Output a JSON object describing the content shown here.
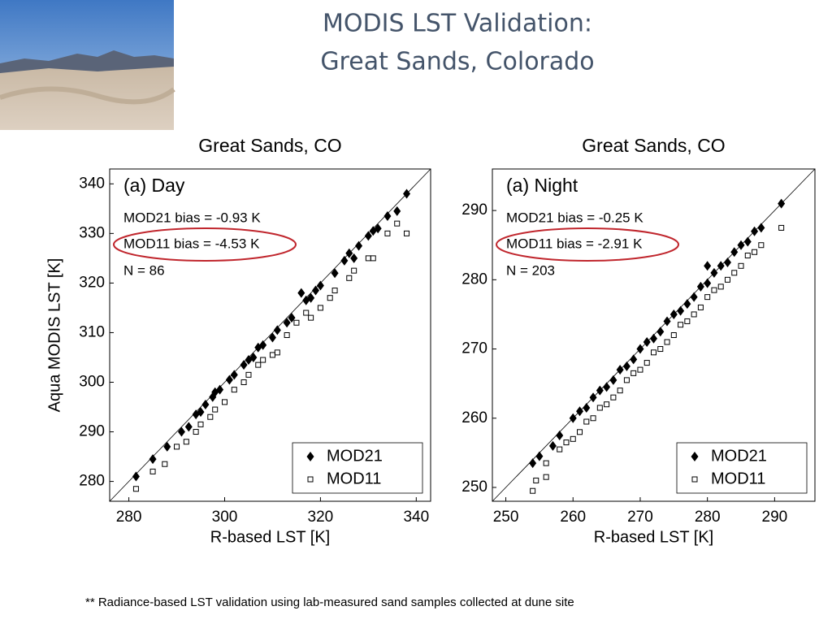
{
  "slide": {
    "title": [
      "MODIS LST Validation:",
      "Great Sands, Colorado"
    ],
    "footnote": "** Radiance-based LST validation using lab-measured sand samples collected at dune site"
  },
  "chart_data": [
    {
      "type": "scatter",
      "title": "Great Sands, CO",
      "panel_label": "(a) Day",
      "annotations": [
        "MOD21 bias = -0.93 K",
        "MOD11 bias = -4.53 K",
        "N = 86"
      ],
      "xlabel": "R-based LST [K]",
      "ylabel": "Aqua MODIS LST [K]",
      "xlim": [
        276,
        343
      ],
      "ylim": [
        276,
        343
      ],
      "xticks": [
        280,
        300,
        320,
        340
      ],
      "yticks": [
        280,
        290,
        300,
        310,
        320,
        330,
        340
      ],
      "legend": "lower right",
      "series": [
        {
          "name": "MOD21",
          "color": "#000000",
          "marker": "diamond",
          "x": [
            281.5,
            285,
            288,
            291,
            292.5,
            294,
            295,
            296,
            297.5,
            298,
            299,
            301,
            302,
            304,
            305,
            306,
            307,
            308,
            310,
            311,
            313,
            314,
            316,
            317,
            318,
            319,
            320,
            323,
            325,
            326,
            327,
            328,
            330,
            331,
            332,
            334,
            336,
            338
          ],
          "values": [
            281,
            284.5,
            287,
            290,
            291,
            293.5,
            294,
            295.5,
            297,
            298,
            298.5,
            300.5,
            301.5,
            303.5,
            304.5,
            305,
            307,
            307.5,
            309,
            310.5,
            312,
            313,
            318,
            316.5,
            317,
            318.5,
            319.5,
            322,
            324.5,
            326,
            325,
            327.5,
            329.5,
            330.5,
            331,
            333.5,
            334.5,
            338
          ]
        },
        {
          "name": "MOD11",
          "color": "#000000",
          "marker": "square-open",
          "x": [
            281.5,
            285,
            287.5,
            290,
            292,
            294,
            295,
            297,
            298,
            300,
            302,
            304,
            305,
            307,
            308,
            310,
            311,
            313,
            315,
            317,
            318,
            320,
            322,
            323,
            326,
            327,
            330,
            331,
            334,
            336,
            338
          ],
          "values": [
            278.5,
            282,
            283.5,
            287,
            288,
            290,
            291.5,
            293,
            294.5,
            296,
            298.5,
            300,
            301.5,
            303.5,
            304.5,
            305.5,
            306,
            309.5,
            312,
            314,
            313,
            315,
            317,
            318.5,
            321,
            322.5,
            325,
            325,
            330,
            332,
            330
          ]
        }
      ]
    },
    {
      "type": "scatter",
      "title": "Great Sands, CO",
      "panel_label": "(a) Night",
      "annotations": [
        "MOD21 bias = -0.25 K",
        "MOD11 bias = -2.91 K",
        "N = 203"
      ],
      "xlabel": "R-based LST [K]",
      "xlim": [
        248,
        296
      ],
      "ylim": [
        248,
        296
      ],
      "xticks": [
        250,
        260,
        270,
        280,
        290
      ],
      "yticks": [
        250,
        260,
        270,
        280,
        290
      ],
      "legend": "lower right",
      "series": [
        {
          "name": "MOD21",
          "color": "#000000",
          "marker": "diamond",
          "x": [
            254,
            255,
            257,
            258,
            260,
            261,
            262,
            263,
            264,
            265,
            266,
            267,
            268,
            269,
            270,
            271,
            272,
            273,
            274,
            275,
            276,
            277,
            278,
            279,
            280,
            280,
            281,
            282,
            283,
            284,
            285,
            286,
            287,
            288,
            291
          ],
          "values": [
            253.5,
            254.5,
            256,
            257.5,
            260,
            261,
            261.5,
            263,
            264,
            264.5,
            265.5,
            267,
            267.5,
            268.5,
            270,
            271,
            271.5,
            272.5,
            274,
            275,
            275.5,
            276.5,
            277.5,
            279,
            279.5,
            282,
            281,
            282,
            282.5,
            284,
            285,
            285.5,
            287,
            287.5,
            291
          ]
        },
        {
          "name": "MOD11",
          "color": "#000000",
          "marker": "square-open",
          "x": [
            254,
            254.5,
            256,
            256,
            258,
            259,
            260,
            261,
            262,
            263,
            264,
            265,
            266,
            267,
            268,
            269,
            270,
            271,
            272,
            273,
            274,
            275,
            276,
            277,
            278,
            279,
            280,
            281,
            282,
            283,
            284,
            285,
            286,
            287,
            288,
            291
          ],
          "values": [
            249.5,
            251,
            251.5,
            253.5,
            255.5,
            256.5,
            257,
            258,
            259.5,
            260,
            261.5,
            262,
            263,
            264,
            265.5,
            266.5,
            267,
            268,
            269.5,
            270,
            271,
            272,
            273.5,
            274,
            275,
            276,
            277.5,
            278.5,
            279,
            280,
            281,
            282,
            283.5,
            284,
            285,
            287.5
          ]
        }
      ]
    }
  ]
}
